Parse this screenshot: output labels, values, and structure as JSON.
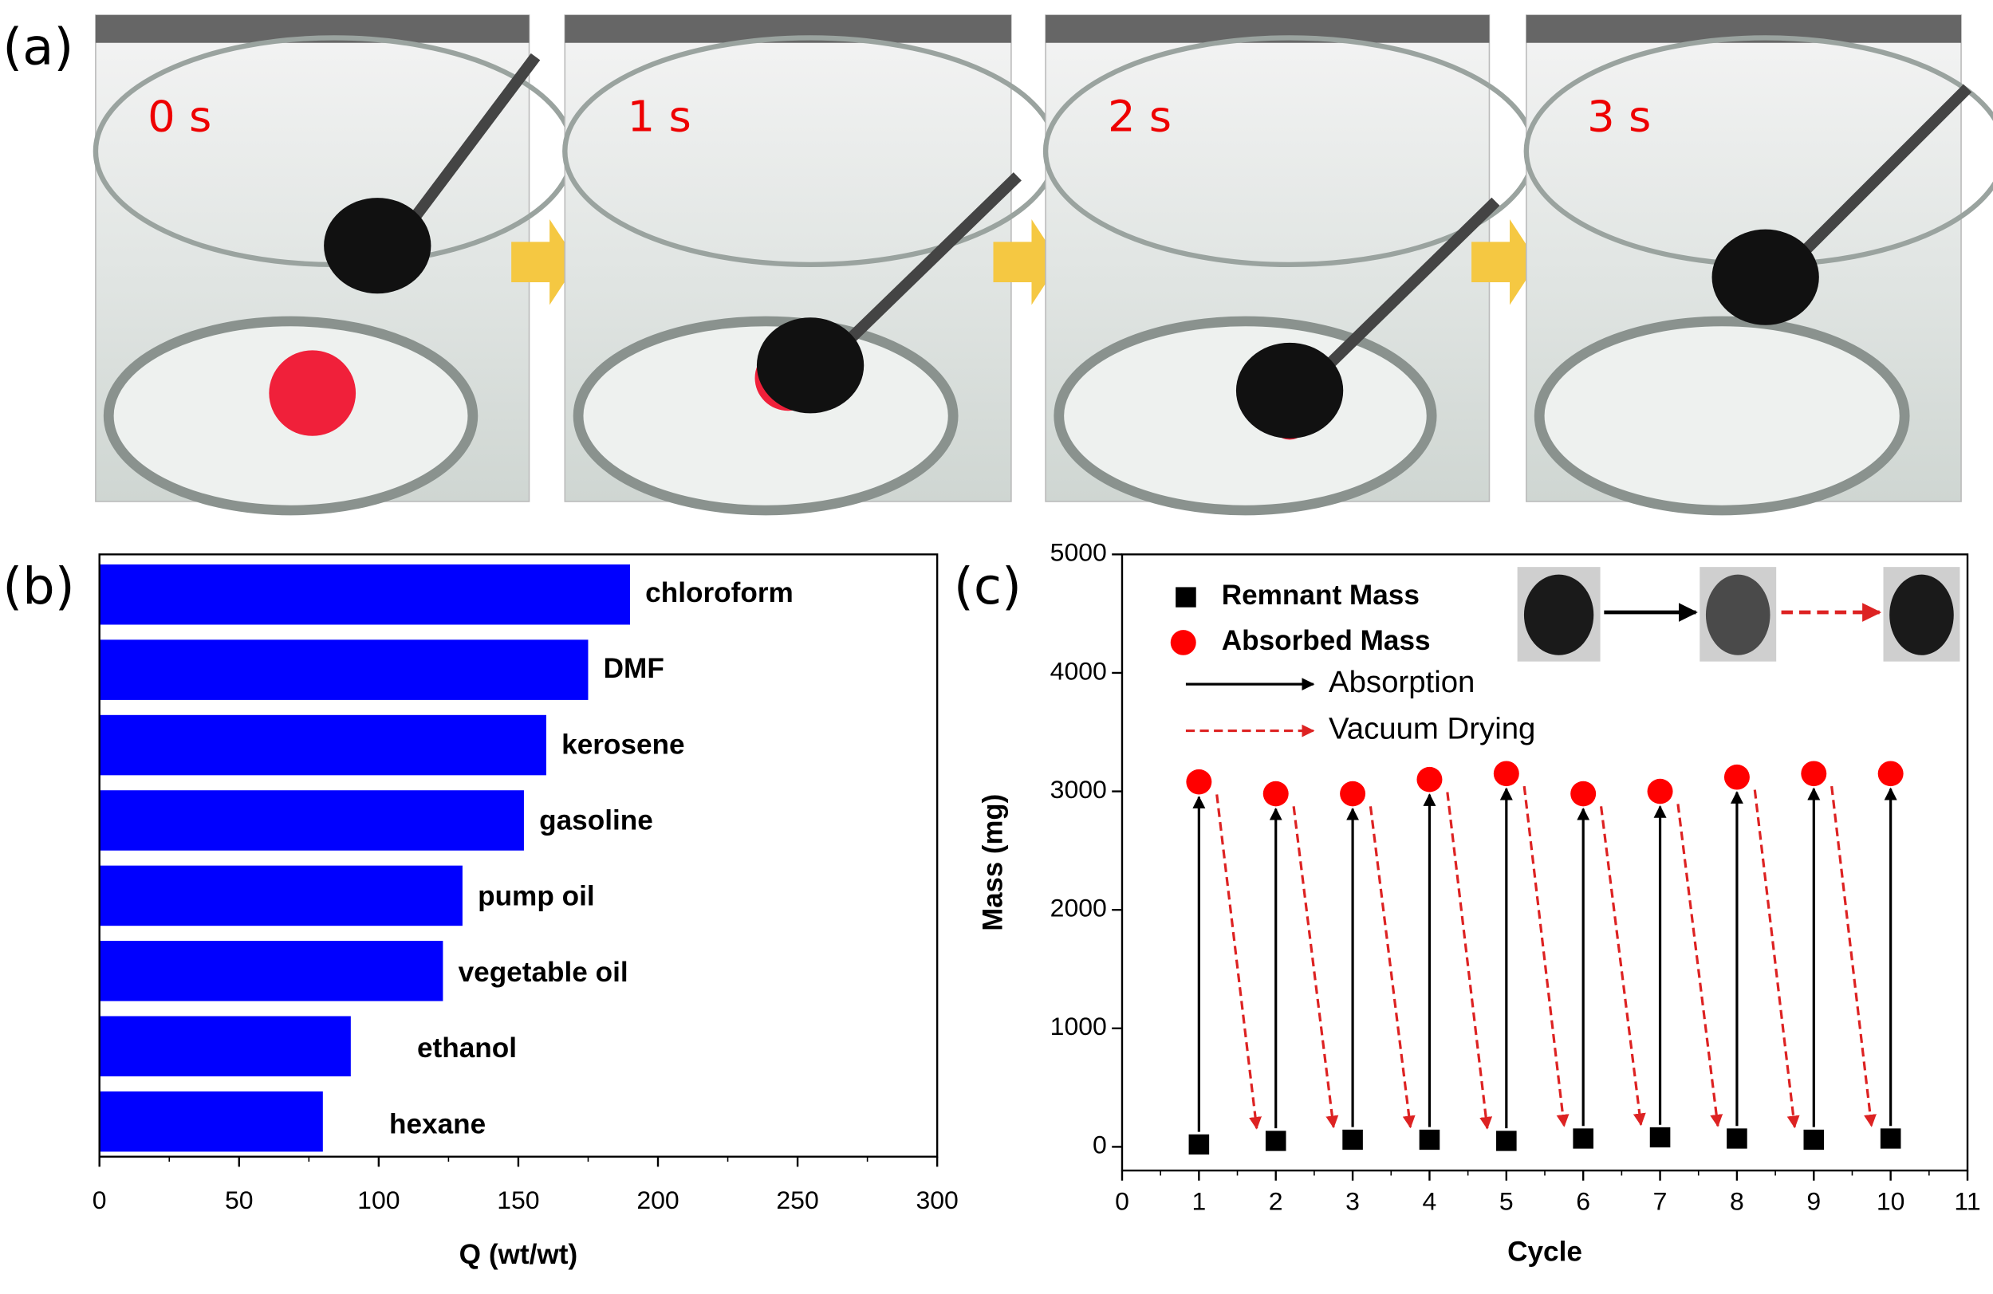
{
  "panel_a": {
    "label": "(a)",
    "frames": [
      "0 s",
      "1 s",
      "2 s",
      "3 s"
    ]
  },
  "chart_data": [
    {
      "type": "bar",
      "panel_label": "(b)",
      "categories": [
        "chloroform",
        "DMF",
        "kerosene",
        "gasoline",
        "pump oil",
        "vegetable oil",
        "ethanol",
        "hexane"
      ],
      "values": [
        190,
        175,
        160,
        152,
        130,
        123,
        90,
        80
      ],
      "color": "#0000ff",
      "xlim": [
        0,
        300
      ],
      "xticks": [
        0,
        50,
        100,
        150,
        200,
        250,
        300
      ],
      "xlabel": "Q (wt/wt)"
    },
    {
      "type": "scatter",
      "panel_label": "(c)",
      "x": [
        1,
        2,
        3,
        4,
        5,
        6,
        7,
        8,
        9,
        10
      ],
      "series": [
        {
          "name": "Remnant Mass",
          "color": "#000000",
          "marker": "square",
          "values": [
            20,
            50,
            60,
            60,
            50,
            70,
            80,
            70,
            60,
            70
          ]
        },
        {
          "name": "Absorbed Mass",
          "color": "#ff0000",
          "marker": "circle",
          "values": [
            3080,
            2980,
            2980,
            3100,
            3150,
            2980,
            3000,
            3120,
            3150,
            3150
          ]
        }
      ],
      "annotations": [
        "Absorption",
        "Vacuum Drying"
      ],
      "xlim": [
        0,
        11
      ],
      "xticks": [
        0,
        1,
        2,
        3,
        4,
        5,
        6,
        7,
        8,
        9,
        10,
        11
      ],
      "ylim": [
        -200,
        5000
      ],
      "yticks": [
        0,
        1000,
        2000,
        3000,
        4000,
        5000
      ],
      "xlabel": "Cycle",
      "ylabel": "Mass (mg)"
    }
  ]
}
